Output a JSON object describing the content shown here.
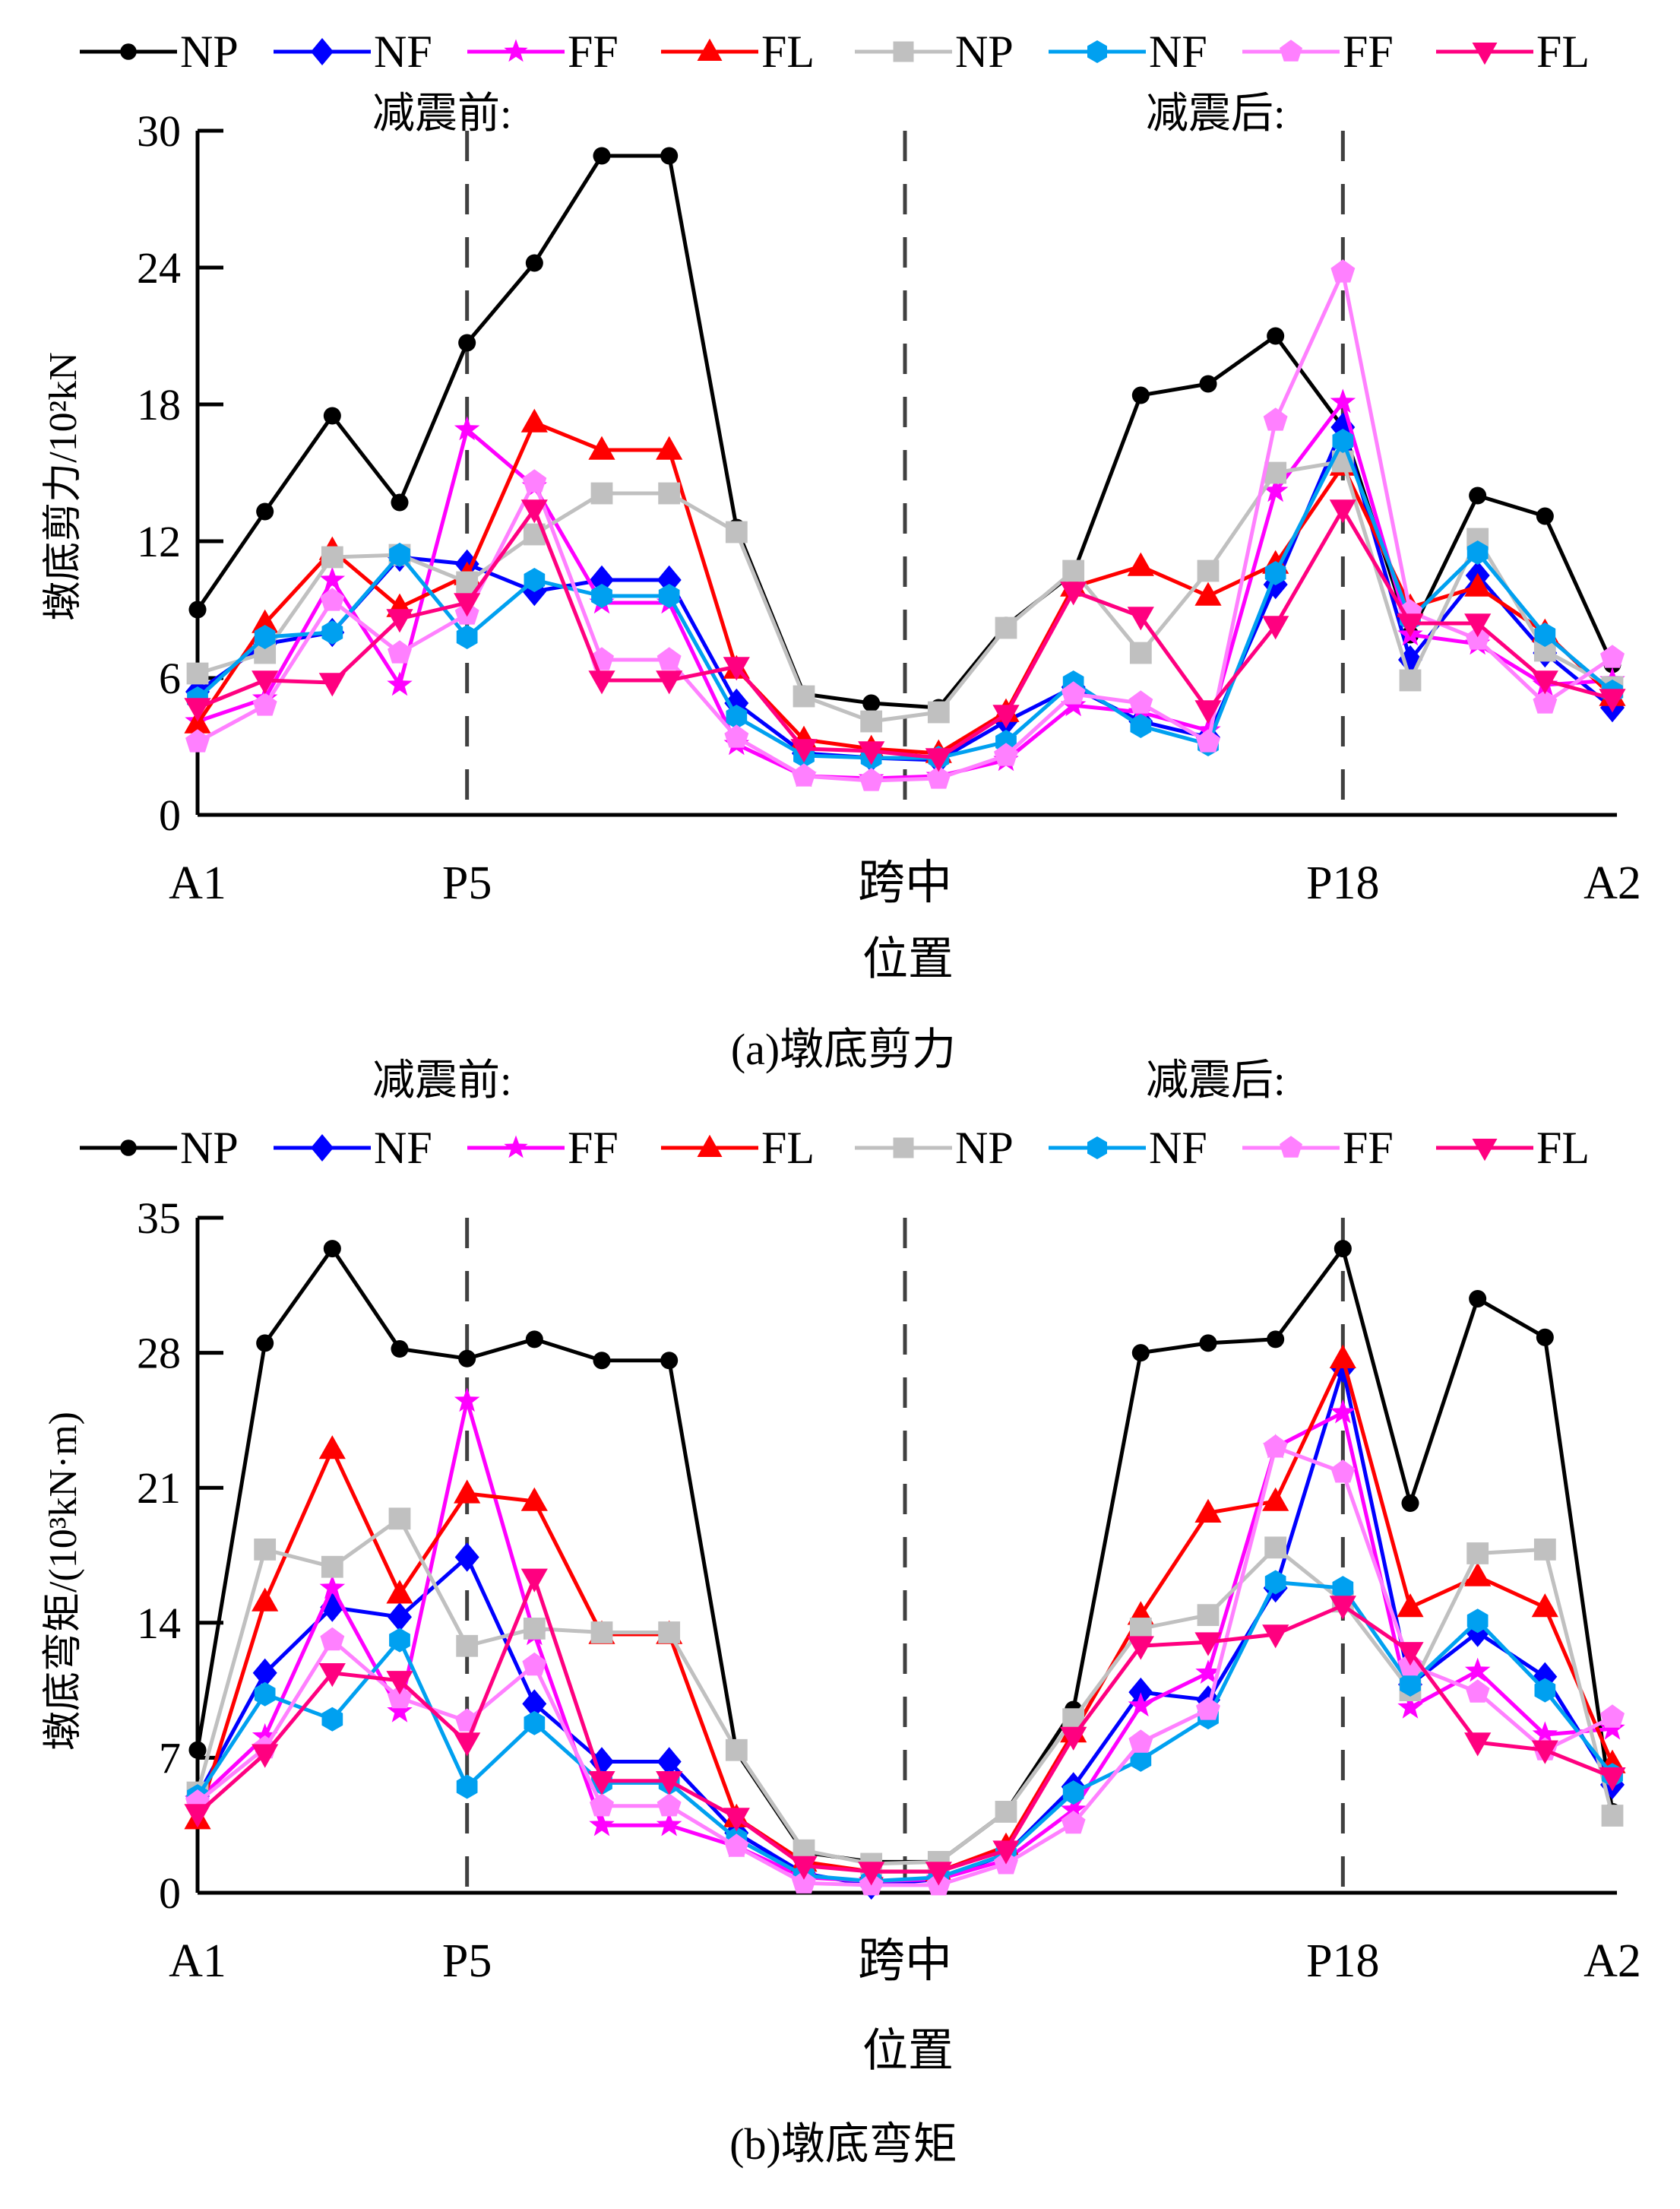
{
  "figure": {
    "legend_entries": [
      "NP",
      "NF",
      "FF",
      "FL",
      "NP",
      "NF",
      "FF",
      "FL"
    ],
    "group_label_before": "减震前:",
    "group_label_after": "减震后:"
  },
  "chart_data": [
    {
      "type": "line",
      "title": "(a)墩底剪力",
      "xlabel": "位置",
      "ylabel": "墩底剪力/10²kN",
      "ylim": [
        0,
        30
      ],
      "yticks": [
        0,
        6,
        12,
        18,
        24,
        30
      ],
      "x": [
        0,
        1,
        2,
        3,
        4,
        5,
        6,
        7,
        8,
        9,
        10,
        11,
        12,
        13,
        14,
        15,
        16,
        17,
        18,
        19,
        20,
        21
      ],
      "x_tick_labels": [
        {
          "x": 0,
          "label": "A1"
        },
        {
          "x": 4,
          "label": "P5"
        },
        {
          "x": 10.5,
          "label": "跨中"
        },
        {
          "x": 17,
          "label": "P18"
        },
        {
          "x": 21,
          "label": "A2"
        }
      ],
      "reference_lines": [
        4,
        10.5,
        17
      ],
      "grid": false,
      "legend_position": "top",
      "series": [
        {
          "name": "NP",
          "group": "减震前",
          "color": "#000000",
          "marker": "circle",
          "values": [
            9.0,
            13.3,
            17.5,
            13.7,
            20.7,
            24.2,
            28.9,
            28.9,
            12.6,
            5.3,
            4.9,
            4.7,
            8.3,
            10.6,
            18.4,
            18.9,
            21.0,
            17.0,
            7.9,
            14.0,
            13.1,
            6.6
          ]
        },
        {
          "name": "NF",
          "group": "减震前",
          "color": "#0000ff",
          "marker": "diamond",
          "values": [
            5.4,
            7.5,
            8.0,
            11.3,
            11.0,
            9.8,
            10.3,
            10.3,
            4.9,
            2.7,
            2.5,
            2.4,
            4.1,
            5.6,
            4.1,
            3.4,
            10.1,
            17.0,
            6.8,
            10.5,
            7.1,
            4.7
          ]
        },
        {
          "name": "FF",
          "group": "减震前",
          "color": "#ff00ff",
          "marker": "star",
          "values": [
            4.1,
            5.1,
            10.3,
            5.7,
            16.9,
            14.4,
            9.3,
            9.3,
            3.1,
            1.7,
            1.6,
            1.7,
            2.4,
            4.8,
            4.5,
            3.7,
            14.2,
            18.1,
            7.9,
            7.5,
            5.7,
            5.9
          ]
        },
        {
          "name": "FL",
          "group": "减震前",
          "color": "#ff0000",
          "marker": "triangle-up",
          "values": [
            4.0,
            8.4,
            11.6,
            9.1,
            10.5,
            17.2,
            16.0,
            16.0,
            6.4,
            3.3,
            2.9,
            2.7,
            4.5,
            10.0,
            10.9,
            9.6,
            11.0,
            15.3,
            9.1,
            10.0,
            8.0,
            5.2
          ]
        },
        {
          "name": "NP",
          "group": "减震后",
          "color": "#c0c0c0",
          "marker": "square",
          "values": [
            6.2,
            7.1,
            11.3,
            11.4,
            10.2,
            12.3,
            14.1,
            14.1,
            12.4,
            5.2,
            4.1,
            4.5,
            8.2,
            10.7,
            7.1,
            10.7,
            15.0,
            15.5,
            5.9,
            12.1,
            7.2,
            5.6
          ]
        },
        {
          "name": "NF",
          "group": "减震后",
          "color": "#00a0f0",
          "marker": "hexagon",
          "values": [
            5.1,
            7.8,
            8.0,
            11.4,
            7.8,
            10.3,
            9.6,
            9.6,
            4.3,
            2.6,
            2.5,
            2.5,
            3.2,
            5.8,
            3.9,
            3.1,
            10.6,
            16.4,
            8.6,
            11.5,
            7.9,
            5.4
          ]
        },
        {
          "name": "FF",
          "group": "减震后",
          "color": "#ff80ff",
          "marker": "pentagon",
          "values": [
            3.2,
            4.8,
            9.4,
            7.1,
            8.8,
            14.6,
            6.8,
            6.8,
            3.4,
            1.7,
            1.5,
            1.6,
            2.6,
            5.3,
            4.9,
            3.2,
            17.3,
            23.8,
            8.9,
            7.7,
            4.9,
            6.9
          ]
        },
        {
          "name": "FL",
          "group": "减震后",
          "color": "#ff0080",
          "marker": "triangle-down",
          "values": [
            4.7,
            5.9,
            5.8,
            8.6,
            9.3,
            13.4,
            5.9,
            5.9,
            6.5,
            2.9,
            2.8,
            2.5,
            4.4,
            9.8,
            8.7,
            4.6,
            8.3,
            13.4,
            8.4,
            8.4,
            5.9,
            5.1
          ]
        }
      ]
    },
    {
      "type": "line",
      "title": "(b)墩底弯矩",
      "xlabel": "位置",
      "ylabel": "墩底弯矩/(10³kN·m)",
      "ylim": [
        0,
        35
      ],
      "yticks": [
        0,
        7,
        14,
        21,
        28,
        35
      ],
      "x": [
        0,
        1,
        2,
        3,
        4,
        5,
        6,
        7,
        8,
        9,
        10,
        11,
        12,
        13,
        14,
        15,
        16,
        17,
        18,
        19,
        20,
        21
      ],
      "x_tick_labels": [
        {
          "x": 0,
          "label": "A1"
        },
        {
          "x": 4,
          "label": "P5"
        },
        {
          "x": 10.5,
          "label": "跨中"
        },
        {
          "x": 17,
          "label": "P18"
        },
        {
          "x": 21,
          "label": "A2"
        }
      ],
      "reference_lines": [
        4,
        10.5,
        17
      ],
      "grid": false,
      "legend_position": "top",
      "series": [
        {
          "name": "NP",
          "group": "减震前",
          "color": "#000000",
          "marker": "circle",
          "values": [
            7.4,
            28.5,
            33.4,
            28.2,
            27.7,
            28.7,
            27.6,
            27.6,
            7.3,
            2.1,
            1.6,
            1.6,
            4.2,
            9.5,
            28.0,
            28.5,
            28.7,
            33.4,
            20.2,
            30.8,
            28.8,
            4.2
          ]
        },
        {
          "name": "NF",
          "group": "减震前",
          "color": "#0000ff",
          "marker": "diamond",
          "values": [
            5.0,
            11.4,
            14.8,
            14.3,
            17.4,
            9.8,
            6.8,
            6.8,
            3.1,
            1.0,
            0.4,
            0.7,
            2.0,
            5.5,
            10.4,
            10.0,
            15.8,
            27.2,
            10.8,
            13.5,
            11.2,
            5.6
          ]
        },
        {
          "name": "FF",
          "group": "减震前",
          "color": "#ff00ff",
          "marker": "star",
          "values": [
            4.8,
            8.1,
            15.8,
            9.4,
            25.5,
            13.4,
            3.5,
            3.5,
            2.4,
            0.8,
            0.6,
            0.7,
            1.7,
            4.3,
            9.7,
            11.4,
            23.1,
            24.9,
            9.6,
            11.5,
            8.2,
            8.5
          ]
        },
        {
          "name": "FL",
          "group": "减震前",
          "color": "#ff0000",
          "marker": "triangle-up",
          "values": [
            3.8,
            15.1,
            23.0,
            15.5,
            20.7,
            20.3,
            13.4,
            13.4,
            3.9,
            1.6,
            1.1,
            1.1,
            2.4,
            8.3,
            14.4,
            19.7,
            20.3,
            27.7,
            14.8,
            16.4,
            14.8,
            6.7
          ]
        },
        {
          "name": "NP",
          "group": "减震后",
          "color": "#c0c0c0",
          "marker": "square",
          "values": [
            5.2,
            17.8,
            16.9,
            19.4,
            12.8,
            13.7,
            13.5,
            13.5,
            7.4,
            2.2,
            1.5,
            1.6,
            4.2,
            9.0,
            13.7,
            14.4,
            17.9,
            15.1,
            10.5,
            17.6,
            17.8,
            4.0
          ]
        },
        {
          "name": "NF",
          "group": "减震后",
          "color": "#00a0f0",
          "marker": "hexagon",
          "values": [
            5.0,
            10.3,
            9.0,
            13.1,
            5.5,
            8.8,
            5.7,
            5.7,
            2.8,
            0.9,
            0.6,
            0.8,
            2.0,
            5.2,
            6.9,
            9.1,
            16.1,
            15.8,
            10.8,
            14.1,
            10.5,
            6.1
          ]
        },
        {
          "name": "FF",
          "group": "减震后",
          "color": "#ff80ff",
          "marker": "pentagon",
          "values": [
            4.7,
            7.5,
            13.1,
            10.1,
            8.9,
            11.8,
            4.5,
            4.5,
            2.4,
            0.5,
            0.4,
            0.4,
            1.5,
            3.6,
            7.8,
            9.5,
            23.1,
            21.8,
            11.8,
            10.4,
            7.4,
            9.1
          ]
        },
        {
          "name": "FL",
          "group": "减震后",
          "color": "#ff0080",
          "marker": "triangle-down",
          "values": [
            4.1,
            7.2,
            11.4,
            11.0,
            7.8,
            16.3,
            5.8,
            5.8,
            3.9,
            1.4,
            1.1,
            1.1,
            2.2,
            8.1,
            12.8,
            13.0,
            13.4,
            14.9,
            12.5,
            7.8,
            7.4,
            6.0
          ]
        }
      ]
    }
  ]
}
